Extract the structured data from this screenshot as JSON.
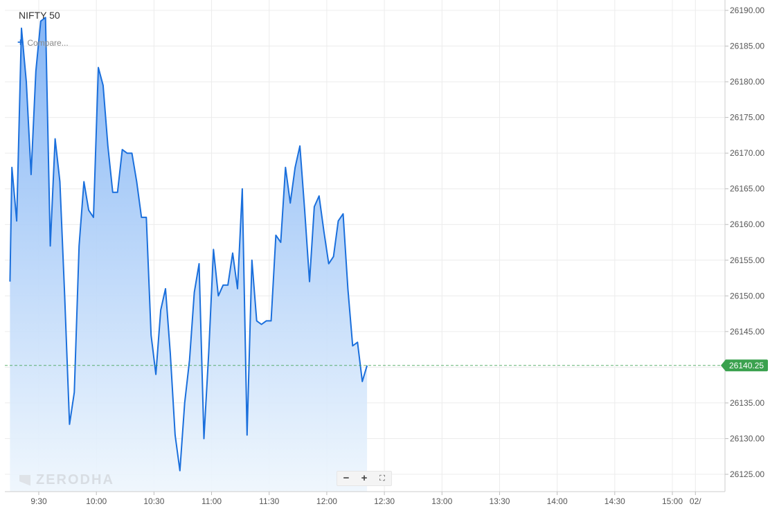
{
  "title": "NIFTY 50",
  "compare": {
    "icon": "plus-icon",
    "label": "Compare..."
  },
  "watermark": "ZERODHA",
  "zoom": {
    "minus": "−",
    "plus": "+",
    "fit_icon": "fit-screen-icon"
  },
  "colors": {
    "line": "#1a6fdc",
    "fill_top": "#7fb2f5",
    "fill_bottom": "#eef6fd",
    "grid": "#ececec",
    "current_tag": "#3aa14e",
    "current_line": "#3aa14e"
  },
  "chart_data": {
    "type": "area",
    "title": "NIFTY 50",
    "ylim": [
      26122,
      26191
    ],
    "y_ticks": [
      "26190.00",
      "26185.00",
      "26180.00",
      "26175.00",
      "26170.00",
      "26165.00",
      "26160.00",
      "26155.00",
      "26150.00",
      "26145.00",
      "26140.00",
      "26135.00",
      "26130.00",
      "26125.00"
    ],
    "x_ticks": [
      {
        "label": "9:30",
        "t": 570
      },
      {
        "label": "10:00",
        "t": 600
      },
      {
        "label": "10:30",
        "t": 630
      },
      {
        "label": "11:00",
        "t": 660
      },
      {
        "label": "11:30",
        "t": 690
      },
      {
        "label": "12:00",
        "t": 720
      },
      {
        "label": "12:30",
        "t": 750
      },
      {
        "label": "13:00",
        "t": 780
      },
      {
        "label": "13:30",
        "t": 810
      },
      {
        "label": "14:00",
        "t": 840
      },
      {
        "label": "14:30",
        "t": 870
      },
      {
        "label": "15:00",
        "t": 900
      },
      {
        "label": "02/",
        "t": 912
      }
    ],
    "current_price": "26140.25",
    "current_value": 26140.25,
    "grid": true,
    "series": [
      {
        "points": [
          [
            555,
            26152.0
          ],
          [
            556,
            26168.0
          ],
          [
            558.5,
            26160.5
          ],
          [
            561,
            26187.5
          ],
          [
            563.5,
            26180.0
          ],
          [
            566,
            26167.0
          ],
          [
            568.5,
            26181.5
          ],
          [
            571,
            26188.5
          ],
          [
            573.5,
            26189.0
          ],
          [
            576,
            26157.0
          ],
          [
            578.5,
            26172.0
          ],
          [
            581,
            26166.0
          ],
          [
            583.5,
            26150.0
          ],
          [
            586,
            26132.0
          ],
          [
            588.5,
            26136.5
          ],
          [
            591,
            26157.0
          ],
          [
            593.5,
            26166.0
          ],
          [
            596,
            26162.0
          ],
          [
            598.5,
            26161.0
          ],
          [
            601,
            26182.0
          ],
          [
            603.5,
            26179.5
          ],
          [
            606,
            26171.0
          ],
          [
            608.5,
            26164.5
          ],
          [
            611,
            26164.5
          ],
          [
            613.5,
            26170.5
          ],
          [
            616,
            26170.0
          ],
          [
            618.5,
            26170.0
          ],
          [
            621,
            26166.0
          ],
          [
            623.5,
            26161.0
          ],
          [
            626,
            26161.0
          ],
          [
            628.5,
            26144.5
          ],
          [
            631,
            26139.0
          ],
          [
            633.5,
            26148.0
          ],
          [
            636,
            26151.0
          ],
          [
            638.5,
            26142.0
          ],
          [
            641,
            26130.5
          ],
          [
            643.5,
            26125.5
          ],
          [
            646,
            26135.0
          ],
          [
            648.5,
            26141.0
          ],
          [
            651,
            26150.5
          ],
          [
            653.5,
            26154.5
          ],
          [
            656,
            26130.0
          ],
          [
            658.5,
            26142.0
          ],
          [
            661,
            26156.5
          ],
          [
            663.5,
            26150.0
          ],
          [
            666,
            26151.5
          ],
          [
            668.5,
            26151.5
          ],
          [
            671,
            26156.0
          ],
          [
            673.5,
            26151.0
          ],
          [
            676,
            26165.0
          ],
          [
            678.5,
            26130.5
          ],
          [
            681,
            26155.0
          ],
          [
            683.5,
            26146.5
          ],
          [
            686,
            26146.0
          ],
          [
            688.5,
            26146.5
          ],
          [
            691,
            26146.5
          ],
          [
            693.5,
            26158.5
          ],
          [
            696,
            26157.5
          ],
          [
            698.5,
            26168.0
          ],
          [
            701,
            26163.0
          ],
          [
            703.5,
            26168.0
          ],
          [
            706,
            26171.0
          ],
          [
            708.5,
            26162.0
          ],
          [
            711,
            26152.0
          ],
          [
            713.5,
            26162.5
          ],
          [
            716,
            26164.0
          ],
          [
            718.5,
            26159.0
          ],
          [
            721,
            26154.5
          ],
          [
            723.5,
            26155.5
          ],
          [
            726,
            26160.5
          ],
          [
            728.5,
            26161.5
          ],
          [
            731,
            26151.0
          ],
          [
            733.5,
            26143.0
          ],
          [
            736,
            26143.5
          ],
          [
            738.5,
            26138.0
          ],
          [
            741,
            26140.25
          ]
        ]
      }
    ]
  }
}
